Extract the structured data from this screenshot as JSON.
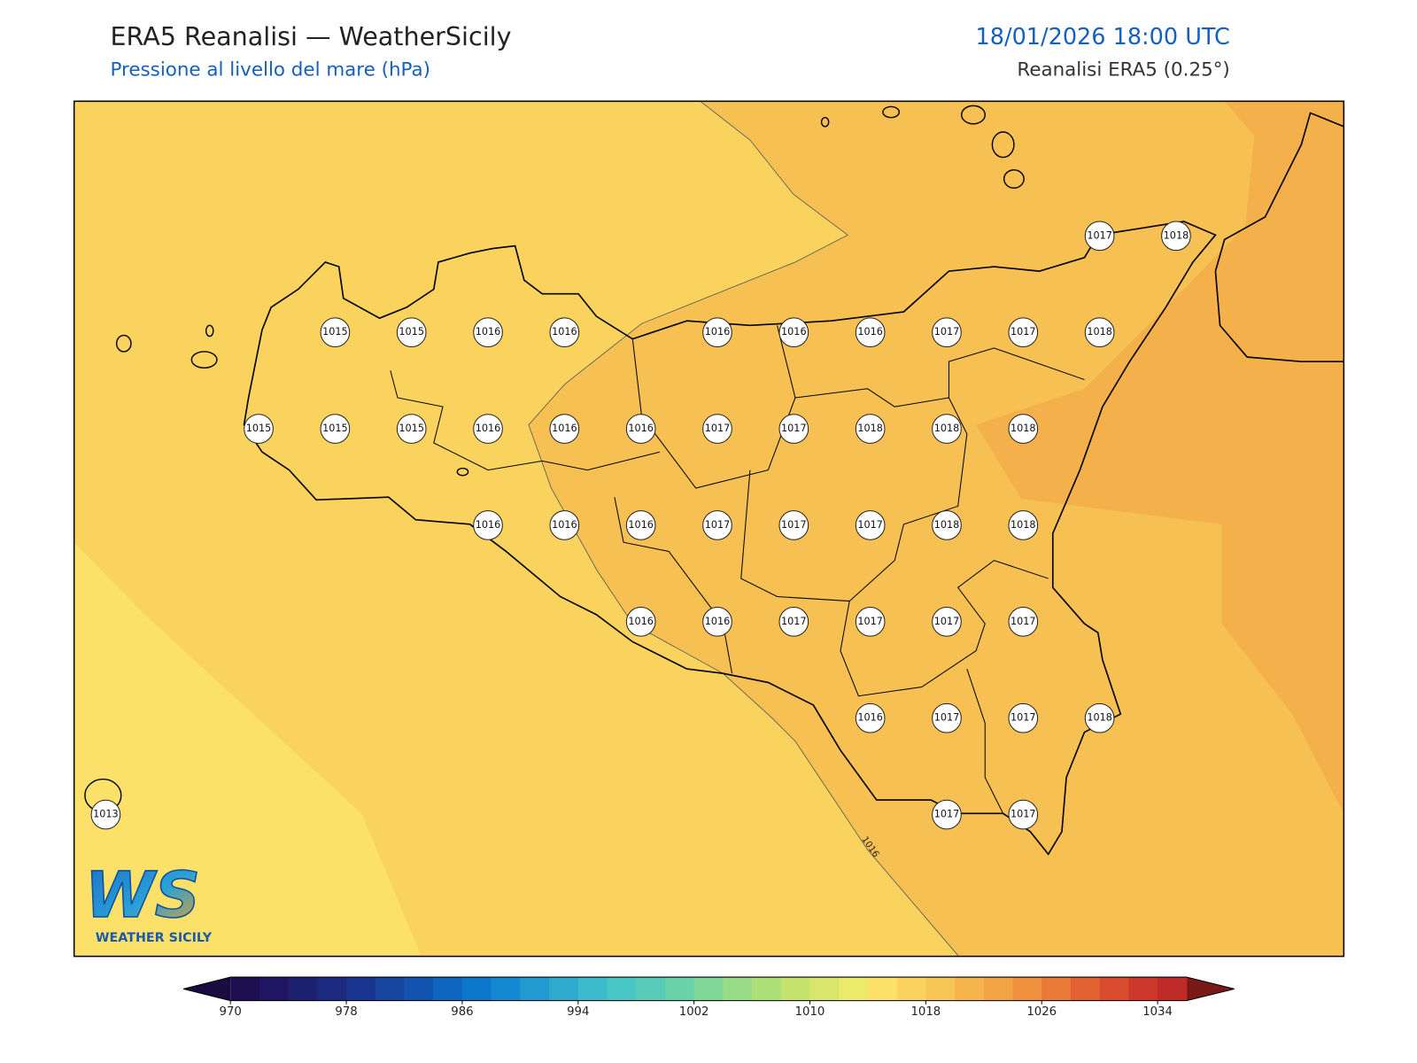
{
  "header": {
    "title": "ERA5 Reanalisi — WeatherSicily",
    "subtitle": "Pressione al livello del mare (hPa)",
    "datetime": "18/01/2026 18:00 UTC",
    "source": "Reanalisi ERA5 (0.25°)"
  },
  "map": {
    "contour_label": "1016",
    "point_labels": [
      "1017",
      "1018",
      "1015",
      "1015",
      "1016",
      "1016",
      "1016",
      "1016",
      "1016",
      "1017",
      "1017",
      "1018",
      "1015",
      "1015",
      "1015",
      "1016",
      "1016",
      "1016",
      "1017",
      "1017",
      "1018",
      "1018",
      "1018",
      "1016",
      "1016",
      "1016",
      "1017",
      "1017",
      "1017",
      "1018",
      "1018",
      "1016",
      "1016",
      "1017",
      "1017",
      "1017",
      "1017",
      "1016",
      "1017",
      "1017",
      "1018",
      "1013",
      "1017",
      "1017"
    ]
  },
  "logo": {
    "letters": "WS",
    "name": "WEATHER SICILY"
  },
  "colorbar": {
    "range": [
      970,
      1036
    ],
    "ticks": [
      970,
      978,
      986,
      994,
      1002,
      1010,
      1018,
      1026,
      1034
    ],
    "colors": [
      "#1e1050",
      "#201560",
      "#1e2070",
      "#1c2a80",
      "#1a3590",
      "#1646a0",
      "#1255b0",
      "#0e66c0",
      "#0b78cc",
      "#1488d0",
      "#2299d0",
      "#30aacc",
      "#3cbbcc",
      "#48c6c6",
      "#58ccb8",
      "#6ad2a8",
      "#80d898",
      "#98dc88",
      "#aee07a",
      "#c4e46e",
      "#d8e66c",
      "#ecea6a",
      "#fbe06a",
      "#fad35f",
      "#f8c656",
      "#f6b54c",
      "#f2a444",
      "#ee903e",
      "#e97a38",
      "#e36232",
      "#da4c2e",
      "#cd382a",
      "#c02a28"
    ],
    "under_color": "#1a0c40",
    "over_color": "#7a1a18"
  }
}
